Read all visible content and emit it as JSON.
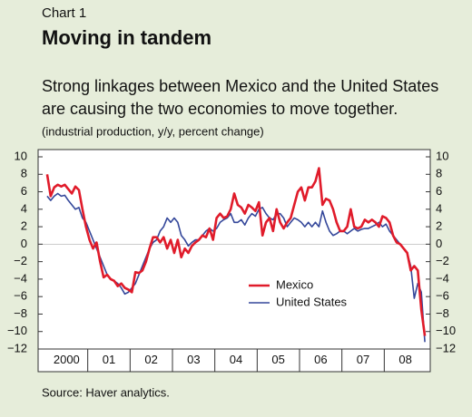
{
  "chart_data": {
    "type": "line",
    "label": "Chart 1",
    "title": "Moving in tandem",
    "subtitle": [
      "Strong linkages between Mexico and the United States",
      "are causing the two economies to move together."
    ],
    "units": "(industrial production, y/y, percent change)",
    "source": "Source: Haver analytics.",
    "categories": [
      null,
      null,
      null,
      null,
      null,
      null,
      "2000",
      null,
      null,
      null,
      null,
      null,
      null,
      null,
      null,
      null,
      null,
      null,
      "01",
      null,
      null,
      null,
      null,
      null,
      null,
      null,
      null,
      null,
      null,
      null,
      "02",
      null,
      null,
      null,
      null,
      null,
      null,
      null,
      null,
      null,
      null,
      null,
      "03",
      null,
      null,
      null,
      null,
      null,
      null,
      null,
      null,
      null,
      null,
      null,
      "04",
      null,
      null,
      null,
      null,
      null,
      null,
      null,
      null,
      null,
      null,
      null,
      "05",
      null,
      null,
      null,
      null,
      null,
      null,
      null,
      null,
      null,
      null,
      null,
      "06",
      null,
      null,
      null,
      null,
      null,
      null,
      null,
      null,
      null,
      null,
      null,
      "07",
      null,
      null,
      null,
      null,
      null,
      null,
      null,
      null,
      null,
      null,
      null,
      "08",
      null,
      null,
      null,
      null,
      null
    ],
    "series": [
      {
        "name": "Mexico",
        "color": "#e01b2a",
        "values": [
          8.0,
          5.5,
          6.5,
          6.8,
          6.6,
          6.8,
          6.3,
          5.8,
          6.6,
          6.2,
          4.0,
          2.0,
          0.5,
          -0.5,
          0.2,
          -2.0,
          -3.8,
          -3.5,
          -4.0,
          -4.2,
          -4.8,
          -4.5,
          -5.0,
          -5.2,
          -5.5,
          -3.2,
          -3.3,
          -3.0,
          -2.0,
          -0.5,
          0.8,
          0.8,
          0.2,
          0.8,
          -0.5,
          0.5,
          -1.0,
          0.5,
          -1.5,
          -0.5,
          -1.0,
          -0.2,
          0.2,
          0.5,
          1.0,
          0.8,
          1.8,
          0.5,
          3.0,
          3.5,
          3.0,
          3.2,
          4.0,
          5.8,
          4.5,
          4.2,
          3.5,
          4.5,
          4.2,
          3.8,
          4.8,
          1.0,
          2.5,
          3.0,
          1.5,
          4.0,
          2.5,
          1.8,
          2.5,
          3.0,
          4.5,
          6.0,
          6.5,
          5.0,
          6.5,
          6.5,
          7.2,
          8.7,
          4.5,
          5.2,
          5.0,
          4.0,
          2.5,
          1.5,
          1.5,
          2.0,
          4.0,
          2.0,
          1.8,
          2.0,
          2.8,
          2.5,
          2.8,
          2.5,
          2.0,
          3.2,
          3.0,
          2.5,
          1.0,
          0.2,
          0.0,
          -0.5,
          -1.0,
          -3.0,
          -2.5,
          -3.0,
          -7.5,
          -10.5
        ]
      },
      {
        "name": "United States",
        "color": "#34479a",
        "values": [
          5.5,
          5.0,
          5.5,
          5.8,
          5.5,
          5.6,
          5.0,
          4.5,
          4.0,
          4.2,
          3.0,
          2.5,
          1.5,
          0.5,
          -0.5,
          -1.5,
          -2.5,
          -3.5,
          -4.0,
          -4.2,
          -4.5,
          -5.0,
          -5.7,
          -5.5,
          -5.0,
          -4.5,
          -3.5,
          -2.5,
          -1.5,
          -0.5,
          0.2,
          0.5,
          1.5,
          2.0,
          3.0,
          2.5,
          3.0,
          2.5,
          1.0,
          0.5,
          -0.2,
          0.2,
          0.5,
          0.5,
          1.0,
          1.5,
          1.8,
          1.5,
          1.8,
          2.5,
          2.8,
          3.0,
          3.5,
          2.5,
          2.5,
          2.8,
          2.2,
          3.0,
          3.5,
          3.2,
          4.0,
          4.2,
          3.5,
          3.0,
          2.8,
          3.5,
          3.5,
          3.0,
          2.0,
          2.5,
          3.0,
          2.8,
          2.5,
          2.0,
          2.5,
          2.0,
          2.5,
          2.0,
          3.8,
          2.5,
          1.5,
          1.0,
          1.2,
          1.5,
          1.5,
          1.2,
          1.5,
          1.8,
          1.5,
          1.7,
          1.8,
          1.8,
          2.0,
          2.2,
          2.5,
          2.0,
          2.3,
          1.5,
          1.0,
          0.5,
          0.0,
          -0.5,
          -1.0,
          -2.5,
          -6.2,
          -4.5,
          -5.5,
          -11.2
        ]
      }
    ],
    "ylim": [
      -12,
      10
    ],
    "yticks": [
      10,
      8,
      6,
      4,
      2,
      0,
      {
        "value": -2,
        "label": "−2"
      },
      {
        "value": -4,
        "label": "−4"
      },
      {
        "value": -6,
        "label": "−6"
      },
      {
        "value": -8,
        "label": "−8"
      },
      {
        "value": -10,
        "label": "−10"
      },
      {
        "value": -12,
        "label": "−12"
      }
    ],
    "y2lim": [
      -12,
      10
    ],
    "y2ticks": [
      10,
      8,
      6,
      4,
      2,
      0,
      {
        "value": -2,
        "label": "−2"
      },
      {
        "value": -4,
        "label": "−4"
      },
      {
        "value": -6,
        "label": "−6"
      },
      {
        "value": -8,
        "label": "−8"
      },
      {
        "value": -10,
        "label": "−10"
      },
      {
        "value": -12,
        "label": "−12"
      }
    ],
    "grid": false,
    "legend": "lower right"
  }
}
